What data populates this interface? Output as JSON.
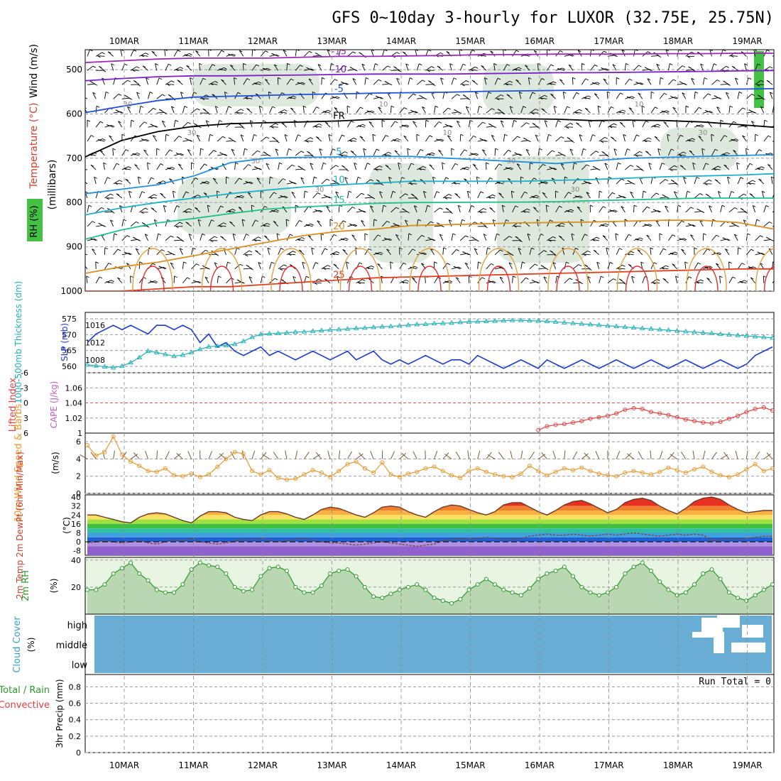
{
  "title": "GFS 0~10day 3-hourly for LUXOR (32.75E, 25.75N)",
  "chart_data": {
    "type": "line",
    "dates": [
      "10MAR",
      "11MAR",
      "12MAR",
      "13MAR",
      "14MAR",
      "15MAR",
      "16MAR",
      "17MAR",
      "18MAR",
      "19MAR"
    ],
    "upper_air": {
      "ylabels": [
        "Wind (m/s)",
        "Temperature (°C)",
        "RH (%)",
        "(millibars)"
      ],
      "pressure_ticks": [
        "500",
        "600",
        "700",
        "800",
        "900",
        "1000"
      ],
      "contours": [
        {
          "label": "-15",
          "color": "#9a28b8",
          "levels": [
            484,
            480,
            476,
            474,
            474,
            474,
            472,
            470,
            470,
            469,
            468,
            466,
            466,
            465,
            465,
            465,
            464,
            464,
            463,
            463
          ]
        },
        {
          "label": "-10",
          "color": "#7a1fc8",
          "levels": [
            525,
            520,
            516,
            514,
            514,
            513,
            512,
            511,
            510,
            510,
            510,
            509,
            508,
            507,
            507,
            506,
            505,
            504,
            503,
            502
          ]
        },
        {
          "label": "-5",
          "color": "#2050d8",
          "levels": [
            597,
            583,
            570,
            562,
            560,
            558,
            556,
            555,
            553,
            552,
            551,
            549,
            548,
            547,
            546,
            546,
            545,
            544,
            544,
            543
          ]
        },
        {
          "label": "FR",
          "color": "#000000",
          "levels": [
            697,
            660,
            640,
            628,
            622,
            620,
            618,
            616,
            612,
            612,
            610,
            610,
            611,
            612,
            615,
            614,
            615,
            618,
            624,
            630
          ]
        },
        {
          "label": "5",
          "color": "#2090e0",
          "levels": [
            780,
            770,
            760,
            740,
            710,
            700,
            698,
            697,
            696,
            696,
            700,
            704,
            708,
            712,
            706,
            700,
            698,
            696,
            694,
            692
          ]
        },
        {
          "label": "10",
          "color": "#20b0c8",
          "levels": [
            828,
            812,
            800,
            790,
            780,
            772,
            765,
            760,
            756,
            752,
            752,
            752,
            752,
            750,
            748,
            745,
            742,
            740,
            738,
            735
          ]
        },
        {
          "label": "15",
          "color": "#20c090",
          "levels": [
            883,
            862,
            846,
            836,
            825,
            815,
            810,
            806,
            802,
            800,
            800,
            799,
            799,
            798,
            796,
            794,
            792,
            790,
            790,
            790
          ]
        },
        {
          "label": "20",
          "color": "#d89020",
          "levels": [
            960,
            945,
            935,
            920,
            905,
            890,
            875,
            865,
            860,
            852,
            850,
            848,
            846,
            845,
            844,
            842,
            840,
            840,
            845,
            860
          ]
        },
        {
          "label": "25",
          "color": "#e04020",
          "levels": [
            1000,
            1000,
            995,
            990,
            990,
            985,
            980,
            975,
            970,
            968,
            966,
            964,
            962,
            960,
            958,
            956,
            954,
            952,
            950,
            950
          ]
        }
      ],
      "rh_labels": [
        "30",
        "30",
        "30",
        "30",
        "10",
        "10",
        "30",
        "30",
        "10",
        "30"
      ]
    },
    "slp_thickness": {
      "left_label": "1000-500mb Thickness (dm)",
      "right_label": "SLP (mb)",
      "thickness_ticks": [
        "575",
        "570",
        "565",
        "560"
      ],
      "slp_ticks": [
        "1016",
        "1012",
        "1008"
      ],
      "slp_mb": [
        1012,
        1014,
        1015,
        1016,
        1015,
        1016,
        1015,
        1014,
        1016,
        1016,
        1015,
        1016,
        1015,
        1012,
        1014,
        1011,
        1012,
        1010,
        1009,
        1010,
        1011,
        1009,
        1010,
        1009,
        1008,
        1009,
        1010,
        1009,
        1008,
        1009,
        1010,
        1008,
        1009,
        1010,
        1008,
        1007,
        1008,
        1007,
        1008,
        1009,
        1008,
        1007,
        1008,
        1008,
        1007,
        1009,
        1008,
        1007,
        1006,
        1007,
        1008,
        1007,
        1006,
        1008,
        1007,
        1006,
        1007,
        1008,
        1007,
        1006,
        1007,
        1008,
        1007,
        1006,
        1007,
        1008,
        1007,
        1006,
        1007,
        1008,
        1007,
        1006,
        1007,
        1008,
        1007,
        1006,
        1007,
        1009,
        1010,
        1011
      ],
      "thickness_dm": [
        560.5,
        560.2,
        559.9,
        559.6,
        560.1,
        561.2,
        562.8,
        564.8,
        564.4,
        563.8,
        563.2,
        563.6,
        564.4,
        565.4,
        566.2,
        566.4,
        566.6,
        567.0,
        567.9,
        569.2,
        570.1,
        570.3,
        570.4,
        570.6,
        570.8,
        570.9,
        571.1,
        571.3,
        571.5,
        571.6,
        571.8,
        572.0,
        572.1,
        572.3,
        572.5,
        572.6,
        572.8,
        573.0,
        573.2,
        573.3,
        573.5,
        573.6,
        573.7,
        573.9,
        574.0,
        574.1,
        574.2,
        574.3,
        574.4,
        574.5,
        574.5,
        574.4,
        574.3,
        574.2,
        574.0,
        573.8,
        573.6,
        573.4,
        573.2,
        573.0,
        572.8,
        572.6,
        572.4,
        572.2,
        572.0,
        571.8,
        571.6,
        571.4,
        571.2,
        571.0,
        570.8,
        570.6,
        570.4,
        570.2,
        570.0,
        569.8,
        569.6,
        569.4,
        569.2,
        569.0
      ]
    },
    "lifted_index_cape": {
      "left_label": "Lifted Index",
      "right_label": "CAPE (J/kg)",
      "li_ticks": [
        "-6",
        "-3",
        "0",
        "3",
        "6"
      ],
      "cape_ticks": [
        "1.06",
        "1.04",
        "1.02",
        "1"
      ],
      "cape_line": [
        0,
        0,
        0,
        0,
        0,
        0,
        0,
        0,
        0,
        0,
        0,
        0,
        0,
        0,
        0,
        0,
        0,
        0,
        0,
        0,
        0,
        0,
        0,
        0,
        0,
        0,
        0,
        0,
        0,
        0,
        0,
        0,
        0,
        0,
        0,
        0,
        0,
        0,
        0,
        0,
        0,
        0,
        0,
        0,
        0,
        0,
        0,
        0,
        0,
        0,
        0,
        0,
        1.004,
        1.009,
        1.011,
        1.012,
        1.014,
        1.016,
        1.019,
        1.021,
        1.023,
        1.026,
        1.031,
        1.033,
        1.032,
        1.028,
        1.026,
        1.024,
        1.021,
        1.018,
        1.016,
        1.014,
        1.013,
        1.015,
        1.019,
        1.023,
        1.028,
        1.032,
        1.034,
        1.03
      ]
    },
    "wind10m": {
      "left_label": "10m Wind Speed & Barbs",
      "unit": "(m/s)",
      "ticks": [
        "6",
        "4",
        "2",
        "0"
      ],
      "speed_ms": [
        5.6,
        4.4,
        4.8,
        6.6,
        4.5,
        3.7,
        3.2,
        2.6,
        2.5,
        2.9,
        2.1,
        2.0,
        2.3,
        1.9,
        2.2,
        3.1,
        4.0,
        4.8,
        4.6,
        2.6,
        2.2,
        2.7,
        1.8,
        1.6,
        1.7,
        2.2,
        2.7,
        2.4,
        1.9,
        2.6,
        3.4,
        3.7,
        2.9,
        2.4,
        3.6,
        2.2,
        1.9,
        2.3,
        2.5,
        2.9,
        3.1,
        2.6,
        2.1,
        1.8,
        2.6,
        2.9,
        2.5,
        2.2,
        2.0,
        1.9,
        2.3,
        3.2,
        2.6,
        2.1,
        2.5,
        2.9,
        2.7,
        3.0,
        2.6,
        2.3,
        2.1,
        2.0,
        2.4,
        2.6,
        2.4,
        2.2,
        2.5,
        3.0,
        2.7,
        2.4,
        2.8,
        3.1,
        2.5,
        2.1,
        1.9,
        2.2,
        2.8,
        3.4,
        2.6,
        2.9
      ]
    },
    "temp2m": {
      "left_label": "2m Temp 2m DewPt (6hr Min/Max)",
      "unit": "(°C)",
      "ticks": [
        "40",
        "32",
        "24",
        "16",
        "8",
        "0",
        "-8"
      ],
      "temp_c": [
        24,
        24,
        22,
        20,
        18,
        17,
        22,
        25,
        26,
        25,
        22,
        19,
        17,
        23,
        27,
        27,
        26,
        22,
        20,
        19,
        24,
        27,
        27,
        25,
        22,
        20,
        24,
        29,
        31,
        30,
        27,
        24,
        22,
        26,
        31,
        32,
        31,
        27,
        24,
        22,
        27,
        31,
        33,
        32,
        29,
        26,
        24,
        27,
        33,
        35,
        35,
        31,
        27,
        24,
        28,
        33,
        36,
        37,
        34,
        30,
        26,
        29,
        35,
        38,
        39,
        37,
        32,
        28,
        25,
        30,
        36,
        39,
        40,
        38,
        33,
        29,
        26,
        27,
        28,
        28
      ],
      "dewpt_c": [
        -1,
        0,
        1,
        0,
        -1,
        0,
        1,
        -1,
        -2,
        0,
        2,
        1,
        3,
        0,
        -1,
        -2,
        -1,
        1,
        2,
        2,
        3,
        1,
        0,
        1,
        2,
        3,
        1,
        0,
        -1,
        -1,
        -2,
        -3,
        -2,
        -1,
        0,
        -1,
        -2,
        -3,
        -4,
        -3,
        -2,
        1,
        2,
        3,
        2,
        3,
        4,
        3,
        2,
        2,
        3,
        5,
        6,
        7,
        6,
        6,
        7,
        6,
        5,
        6,
        7,
        6,
        7,
        8,
        7,
        6,
        5,
        6,
        7,
        6,
        7,
        6,
        1,
        2,
        3,
        2,
        3,
        4,
        5,
        5
      ]
    },
    "rh2m": {
      "left_label": "2m RH",
      "unit": "(%)",
      "ticks": [
        "40",
        "20"
      ],
      "rh_pct": [
        18,
        18,
        22,
        30,
        34,
        38,
        30,
        25,
        18,
        16,
        16,
        22,
        33,
        38,
        36,
        35,
        30,
        20,
        17,
        18,
        28,
        34,
        35,
        32,
        20,
        16,
        16,
        21,
        30,
        32,
        33,
        28,
        20,
        13,
        12,
        15,
        18,
        20,
        22,
        18,
        12,
        10,
        8,
        11,
        18,
        22,
        26,
        22,
        18,
        16,
        14,
        19,
        26,
        30,
        32,
        35,
        28,
        20,
        16,
        14,
        16,
        20,
        30,
        35,
        38,
        32,
        24,
        18,
        14,
        16,
        22,
        30,
        33,
        26,
        16,
        12,
        10,
        14,
        18,
        22
      ]
    },
    "cloud_cover": {
      "left_label": "Cloud Cover",
      "unit": "(%)",
      "levels": [
        "high",
        "middle",
        "low"
      ],
      "base_color": "#6aaed6"
    },
    "precip": {
      "left_label": "3hr Precip (mm)",
      "legend_total": "Total / Rain",
      "legend_conv": "Convective",
      "run_total": "Run Total = 0",
      "ticks": [
        "0.8",
        "0.6",
        "0.4",
        "0.2",
        "0"
      ]
    }
  }
}
